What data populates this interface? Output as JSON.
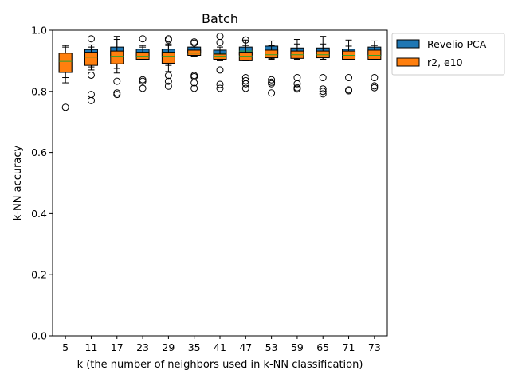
{
  "chart_data": {
    "type": "box",
    "title": "Batch",
    "xlabel": "k (the number of neighbors used in k-NN classification)",
    "ylabel": "k-NN accuracy",
    "ylim": [
      0.0,
      1.0
    ],
    "yticks": [
      "0.0",
      "0.2",
      "0.4",
      "0.6",
      "0.8",
      "1.0"
    ],
    "ytick_values": [
      0.0,
      0.2,
      0.4,
      0.6,
      0.8,
      1.0
    ],
    "categories": [
      "5",
      "11",
      "17",
      "23",
      "29",
      "35",
      "41",
      "47",
      "53",
      "59",
      "65",
      "71",
      "73"
    ],
    "grid": false,
    "legend_position": "outside-top-right",
    "series": [
      {
        "name": "Revelio PCA",
        "color": "#1f77b4",
        "boxes": [
          {
            "q1": 0.862,
            "median": 0.888,
            "q3": 0.925,
            "whisker_low": 0.828,
            "whisker_high": 0.95,
            "outliers": [
              0.748
            ]
          },
          {
            "q1": 0.905,
            "median": 0.925,
            "q3": 0.937,
            "whisker_low": 0.88,
            "whisker_high": 0.952,
            "outliers": [
              0.972,
              0.853,
              0.79,
              0.77
            ]
          },
          {
            "q1": 0.912,
            "median": 0.93,
            "q3": 0.945,
            "whisker_low": 0.875,
            "whisker_high": 0.98,
            "outliers": [
              0.833,
              0.795,
              0.79
            ]
          },
          {
            "q1": 0.915,
            "median": 0.928,
            "q3": 0.938,
            "whisker_low": 0.905,
            "whisker_high": 0.95,
            "outliers": [
              0.972,
              0.838,
              0.833,
              0.81
            ]
          },
          {
            "q1": 0.915,
            "median": 0.928,
            "q3": 0.938,
            "whisker_low": 0.885,
            "whisker_high": 0.955,
            "outliers": [
              0.972,
              0.968,
              0.852,
              0.833,
              0.817
            ]
          },
          {
            "q1": 0.925,
            "median": 0.935,
            "q3": 0.945,
            "whisker_low": 0.915,
            "whisker_high": 0.952,
            "outliers": [
              0.962,
              0.958,
              0.852,
              0.848,
              0.828,
              0.81
            ]
          },
          {
            "q1": 0.915,
            "median": 0.925,
            "q3": 0.935,
            "whisker_low": 0.905,
            "whisker_high": 0.945,
            "outliers": [
              0.98,
              0.96,
              0.87,
              0.823,
              0.81
            ]
          },
          {
            "q1": 0.92,
            "median": 0.932,
            "q3": 0.945,
            "whisker_low": 0.905,
            "whisker_high": 0.968,
            "outliers": [
              0.968,
              0.845,
              0.835,
              0.825,
              0.81
            ]
          },
          {
            "q1": 0.92,
            "median": 0.935,
            "q3": 0.948,
            "whisker_low": 0.908,
            "whisker_high": 0.965,
            "outliers": [
              0.838,
              0.83,
              0.825,
              0.795
            ]
          },
          {
            "q1": 0.918,
            "median": 0.93,
            "q3": 0.942,
            "whisker_low": 0.908,
            "whisker_high": 0.97,
            "outliers": [
              0.845,
              0.825,
              0.812,
              0.808
            ]
          },
          {
            "q1": 0.915,
            "median": 0.928,
            "q3": 0.942,
            "whisker_low": 0.905,
            "whisker_high": 0.98,
            "outliers": [
              0.845,
              0.808,
              0.8,
              0.792
            ]
          },
          {
            "q1": 0.915,
            "median": 0.925,
            "q3": 0.938,
            "whisker_low": 0.905,
            "whisker_high": 0.968,
            "outliers": [
              0.845,
              0.805,
              0.802
            ]
          },
          {
            "q1": 0.918,
            "median": 0.93,
            "q3": 0.945,
            "whisker_low": 0.905,
            "whisker_high": 0.965,
            "outliers": [
              0.845,
              0.818,
              0.812
            ]
          }
        ]
      },
      {
        "name": "r2, e10",
        "color": "#ff7f0e",
        "boxes": [
          {
            "q1": 0.862,
            "median": 0.898,
            "q3": 0.925,
            "whisker_low": 0.845,
            "whisker_high": 0.945,
            "outliers": []
          },
          {
            "q1": 0.885,
            "median": 0.912,
            "q3": 0.928,
            "whisker_low": 0.87,
            "whisker_high": 0.945,
            "outliers": []
          },
          {
            "q1": 0.89,
            "median": 0.915,
            "q3": 0.932,
            "whisker_low": 0.86,
            "whisker_high": 0.97,
            "outliers": []
          },
          {
            "q1": 0.905,
            "median": 0.915,
            "q3": 0.928,
            "whisker_low": 0.905,
            "whisker_high": 0.945,
            "outliers": []
          },
          {
            "q1": 0.892,
            "median": 0.915,
            "q3": 0.928,
            "whisker_low": 0.865,
            "whisker_high": 0.95,
            "outliers": []
          },
          {
            "q1": 0.918,
            "median": 0.925,
            "q3": 0.935,
            "whisker_low": 0.915,
            "whisker_high": 0.945,
            "outliers": []
          },
          {
            "q1": 0.905,
            "median": 0.915,
            "q3": 0.922,
            "whisker_low": 0.9,
            "whisker_high": 0.935,
            "outliers": []
          },
          {
            "q1": 0.9,
            "median": 0.915,
            "q3": 0.928,
            "whisker_low": 0.9,
            "whisker_high": 0.95,
            "outliers": []
          },
          {
            "q1": 0.91,
            "median": 0.92,
            "q3": 0.935,
            "whisker_low": 0.905,
            "whisker_high": 0.95,
            "outliers": []
          },
          {
            "q1": 0.908,
            "median": 0.92,
            "q3": 0.932,
            "whisker_low": 0.905,
            "whisker_high": 0.955,
            "outliers": []
          },
          {
            "q1": 0.91,
            "median": 0.92,
            "q3": 0.932,
            "whisker_low": 0.905,
            "whisker_high": 0.955,
            "outliers": []
          },
          {
            "q1": 0.905,
            "median": 0.918,
            "q3": 0.932,
            "whisker_low": 0.905,
            "whisker_high": 0.948,
            "outliers": []
          },
          {
            "q1": 0.905,
            "median": 0.918,
            "q3": 0.935,
            "whisker_low": 0.905,
            "whisker_high": 0.95,
            "outliers": []
          }
        ]
      }
    ]
  }
}
